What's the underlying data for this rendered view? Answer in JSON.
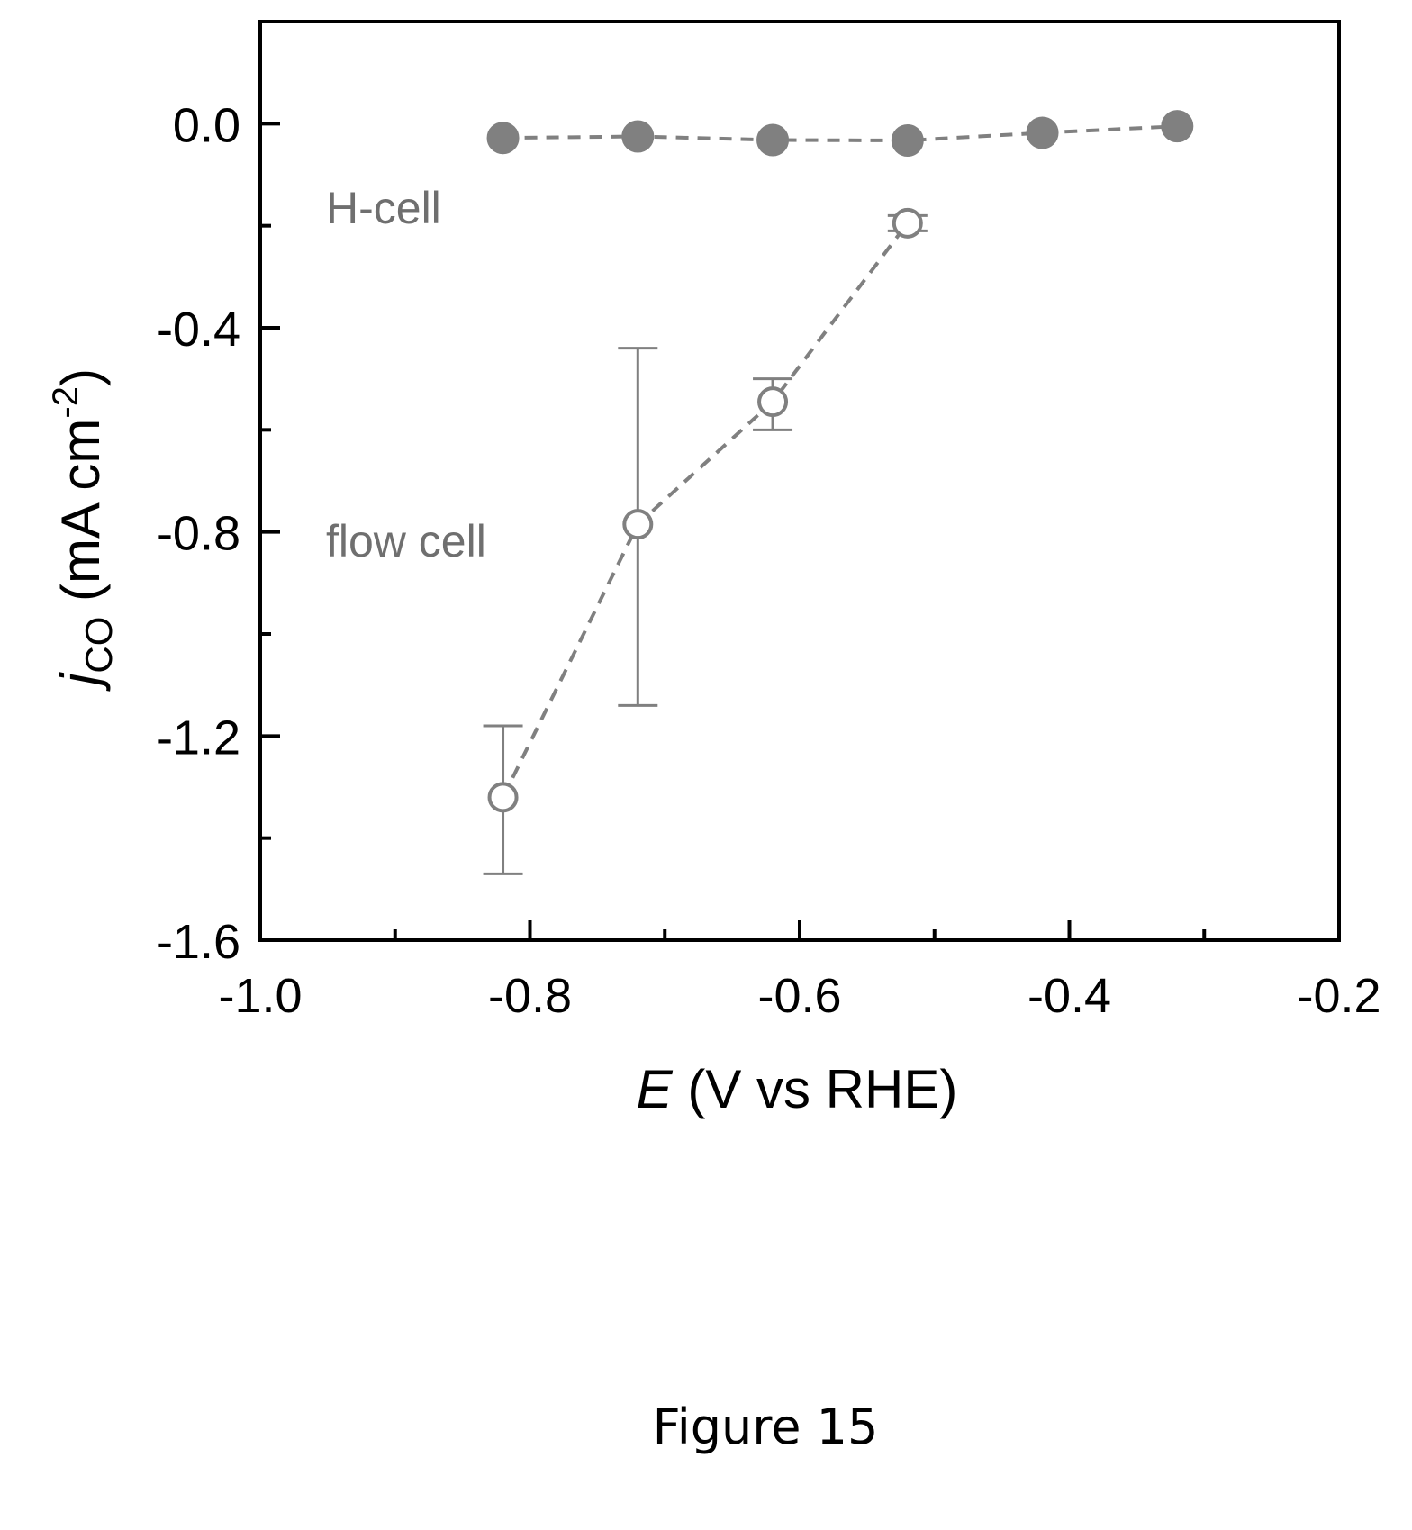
{
  "chart_data": {
    "type": "scatter",
    "xlabel": {
      "italic": "E",
      "rest": " (V vs RHE)"
    },
    "ylabel": {
      "italic": "j",
      "sub": "CO",
      "rest": " (mA cm",
      "sup": "-2",
      "close": ")"
    },
    "xlim": [
      -1.0,
      -0.2
    ],
    "ylim": [
      -1.6,
      0.2
    ],
    "xticks": [
      -1.0,
      -0.8,
      -0.6,
      -0.4,
      -0.2
    ],
    "xtick_labels": [
      "-1.0",
      "-0.8",
      "-0.6",
      "-0.4",
      "-0.2"
    ],
    "xminor": [
      -0.9,
      -0.7,
      -0.5,
      -0.3
    ],
    "yticks": [
      0.0,
      -0.4,
      -0.8,
      -1.2,
      -1.6
    ],
    "ytick_labels": [
      "0.0",
      "-0.4",
      "-0.8",
      "-1.2",
      "-1.6"
    ],
    "yminor": [
      -0.2,
      -0.6,
      -1.0,
      -1.4
    ],
    "grid": false,
    "legend": "none",
    "series": [
      {
        "name": "H-cell",
        "marker": "filled-circle",
        "line": "dashed",
        "color": "#808080",
        "x": [
          -0.82,
          -0.72,
          -0.62,
          -0.52,
          -0.42,
          -0.32
        ],
        "y": [
          -0.028,
          -0.025,
          -0.032,
          -0.033,
          -0.018,
          -0.005
        ]
      },
      {
        "name": "flow cell",
        "marker": "open-circle",
        "line": "dashed",
        "color": "#808080",
        "x": [
          -0.82,
          -0.72,
          -0.62,
          -0.52
        ],
        "y": [
          -1.32,
          -0.785,
          -0.545,
          -0.195
        ],
        "err_low": [
          -1.47,
          -1.14,
          -0.6,
          -0.21
        ],
        "err_high": [
          -1.18,
          -0.44,
          -0.5,
          -0.18
        ]
      }
    ]
  },
  "caption": "Figure 15"
}
